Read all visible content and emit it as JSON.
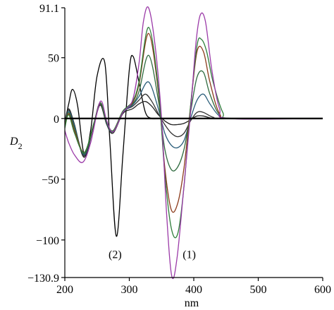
{
  "chart_data": {
    "type": "line",
    "title": "",
    "xlabel": "nm",
    "ylabel": "D",
    "ylabel_sub": "2",
    "xlim": [
      200,
      600
    ],
    "ylim": [
      -130.9,
      91.1
    ],
    "xticks": [
      "200",
      "300",
      "400",
      "500",
      "600"
    ],
    "yticks": [
      "91.1",
      "50",
      "0",
      "−50",
      "−100",
      "−130.9"
    ],
    "ytick_values": [
      91.1,
      50,
      0,
      -50,
      -100,
      -130.9
    ],
    "xtick_values": [
      200,
      300,
      400,
      500,
      600
    ],
    "grid": false,
    "legend": "none",
    "annotations": [
      {
        "text": "(2)",
        "x": 278,
        "y": -115
      },
      {
        "text": "(1)",
        "x": 393,
        "y": -115
      }
    ],
    "series": [
      {
        "color": "#000000",
        "x": [
          200,
          206,
          212,
          220,
          230,
          240,
          250,
          262,
          270,
          280,
          290,
          300,
          306,
          315,
          325,
          335,
          345,
          360,
          380,
          400,
          420,
          450,
          500,
          600
        ],
        "y": [
          -3,
          12,
          24,
          10,
          -30,
          -10,
          35,
          46,
          -20,
          -97,
          -30,
          40,
          51,
          30,
          5,
          0,
          0,
          0,
          0,
          0,
          0,
          0,
          0,
          0
        ]
      },
      {
        "color": "#222222",
        "x": [
          200,
          206,
          215,
          230,
          245,
          255,
          265,
          275,
          290,
          305,
          315,
          325,
          335,
          345,
          355,
          365,
          375,
          385,
          395,
          405,
          415,
          430,
          450,
          600
        ],
        "y": [
          -3,
          8,
          -5,
          -32,
          -5,
          11,
          -5,
          -12,
          4,
          8,
          12,
          14,
          10,
          3,
          -2,
          -5,
          -5,
          -4,
          -1,
          2,
          2,
          0,
          0,
          0
        ]
      },
      {
        "color": "#333333",
        "x": [
          200,
          206,
          215,
          230,
          245,
          255,
          265,
          275,
          290,
          305,
          315,
          325,
          335,
          345,
          355,
          365,
          375,
          385,
          395,
          405,
          415,
          430,
          450,
          600
        ],
        "y": [
          -4,
          7,
          -6,
          -31,
          -5,
          12,
          -4,
          -12,
          5,
          10,
          15,
          20,
          14,
          4,
          -5,
          -12,
          -15,
          -12,
          -2,
          5,
          5,
          1,
          0,
          0
        ]
      },
      {
        "color": "#2a5d7a",
        "x": [
          200,
          206,
          215,
          230,
          245,
          255,
          265,
          275,
          290,
          305,
          315,
          330,
          345,
          355,
          365,
          375,
          385,
          395,
          405,
          415,
          425,
          440,
          460,
          600
        ],
        "y": [
          -5,
          6,
          -6,
          -30,
          -4,
          13,
          -4,
          -11,
          5,
          11,
          18,
          30,
          8,
          -12,
          -22,
          -24,
          -18,
          0,
          15,
          20,
          12,
          2,
          0,
          0
        ]
      },
      {
        "color": "#2f6b3f",
        "x": [
          200,
          206,
          215,
          230,
          245,
          255,
          265,
          275,
          290,
          305,
          315,
          330,
          345,
          355,
          365,
          375,
          385,
          395,
          405,
          415,
          425,
          440,
          460,
          600
        ],
        "y": [
          -6,
          5,
          -8,
          -29,
          -4,
          13,
          -3,
          -11,
          6,
          12,
          22,
          52,
          15,
          -25,
          -42,
          -40,
          -25,
          5,
          34,
          38,
          20,
          3,
          0,
          0
        ]
      },
      {
        "color": "#8b3a1a",
        "x": [
          200,
          206,
          215,
          230,
          245,
          255,
          265,
          275,
          290,
          305,
          315,
          330,
          345,
          355,
          365,
          375,
          385,
          395,
          405,
          415,
          425,
          440,
          460,
          600
        ],
        "y": [
          -7,
          4,
          -10,
          -28,
          -4,
          13,
          -3,
          -10,
          6,
          13,
          28,
          70,
          22,
          -40,
          -75,
          -70,
          -40,
          10,
          55,
          55,
          30,
          4,
          0,
          0
        ]
      },
      {
        "color": "#2e7d3a",
        "x": [
          200,
          206,
          215,
          230,
          245,
          255,
          265,
          275,
          290,
          305,
          315,
          330,
          345,
          355,
          365,
          375,
          385,
          395,
          405,
          412,
          420,
          430,
          445,
          460,
          600
        ],
        "y": [
          -8,
          3,
          -12,
          -28,
          -4,
          13,
          -3,
          -10,
          6,
          14,
          30,
          75,
          25,
          -45,
          -90,
          -95,
          -55,
          10,
          60,
          65,
          55,
          30,
          5,
          0,
          0
        ]
      },
      {
        "color": "#9b3aa8",
        "x": [
          200,
          206,
          215,
          228,
          240,
          255,
          265,
          275,
          290,
          305,
          315,
          322,
          330,
          340,
          350,
          358,
          366,
          374,
          384,
          395,
          403,
          410,
          418,
          428,
          440,
          455,
          600
        ],
        "y": [
          -10,
          -20,
          -30,
          -36,
          -20,
          14,
          -2,
          -11,
          5,
          15,
          45,
          80,
          91,
          60,
          0,
          -80,
          -130,
          -115,
          -60,
          5,
          60,
          85,
          80,
          40,
          8,
          0,
          0
        ]
      }
    ]
  }
}
